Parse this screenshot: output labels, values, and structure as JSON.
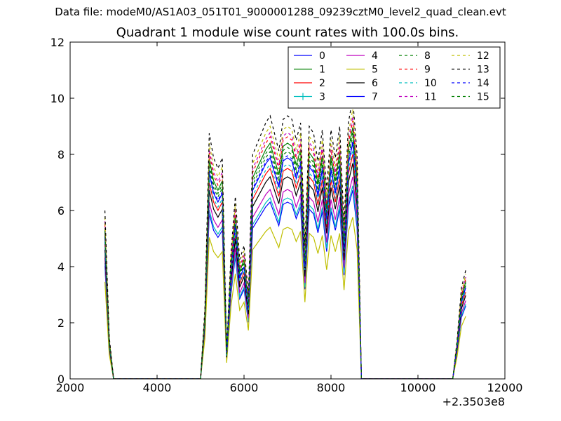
{
  "figure": {
    "suptitle": "Data file: modeM0/AS1A03_051T01_9000001288_09239cztM0_level2_quad_clean.evt"
  },
  "chart_data": {
    "type": "line",
    "title": "Quadrant 1 module wise count rates with 100.0s bins.",
    "xlabel": "",
    "ylabel": "",
    "xlim": [
      2000,
      12000
    ],
    "ylim": [
      0,
      12
    ],
    "x_ticks": [
      2000,
      4000,
      6000,
      8000,
      10000,
      12000
    ],
    "y_ticks": [
      0,
      2,
      4,
      6,
      8,
      10,
      12
    ],
    "x_offset_label": "+2.3503e8",
    "legend": {
      "placement": "top-right",
      "columns": 4
    },
    "x": [
      2800,
      2900,
      3000,
      3100,
      3200,
      3300,
      3400,
      3500,
      3600,
      3700,
      3800,
      3900,
      4000,
      4100,
      4200,
      4300,
      4400,
      4500,
      4600,
      4700,
      4800,
      4900,
      5000,
      5100,
      5200,
      5300,
      5400,
      5500,
      5600,
      5700,
      5800,
      5900,
      6000,
      6100,
      6200,
      6300,
      6400,
      6500,
      6600,
      6700,
      6800,
      6900,
      7000,
      7100,
      7200,
      7300,
      7400,
      7500,
      7600,
      7700,
      7800,
      7900,
      8000,
      8100,
      8200,
      8300,
      8400,
      8500,
      8600,
      8700,
      8800,
      8900,
      9000,
      9100,
      9200,
      9300,
      9400,
      9500,
      9600,
      9700,
      9800,
      9900,
      10000,
      10100,
      10200,
      10300,
      10400,
      10500,
      10600,
      10700,
      10800,
      10900,
      11000,
      11100
    ],
    "base_profile": [
      4.8,
      1.2,
      0,
      0,
      0,
      0,
      0,
      0,
      0,
      0,
      0,
      0,
      0,
      0,
      0,
      0,
      0,
      0,
      0,
      0,
      0,
      0,
      0,
      2.0,
      7.0,
      6.3,
      6.0,
      6.3,
      0.8,
      3.6,
      5.2,
      3.4,
      3.8,
      2.4,
      6.4,
      6.7,
      7.0,
      7.3,
      7.5,
      7.0,
      6.5,
      7.4,
      7.5,
      7.4,
      6.8,
      7.3,
      3.8,
      7.2,
      7.0,
      6.2,
      7.1,
      5.4,
      7.1,
      6.3,
      7.2,
      4.4,
      7.3,
      8.0,
      6.4,
      0,
      0,
      0,
      0,
      0,
      0,
      0,
      0,
      0,
      0,
      0,
      0,
      0,
      0,
      0,
      0,
      0,
      0,
      0,
      0,
      0,
      0,
      1.1,
      2.6,
      3.1
    ],
    "series": [
      {
        "name": "0",
        "color": "#0000ff",
        "style": "solid",
        "marker": "",
        "scale": 0.84
      },
      {
        "name": "1",
        "color": "#008000",
        "style": "solid",
        "marker": "",
        "scale": 1.12
      },
      {
        "name": "2",
        "color": "#ff0000",
        "style": "solid",
        "marker": "",
        "scale": 1.0
      },
      {
        "name": "3",
        "color": "#00bfbf",
        "style": "solid",
        "marker": "+",
        "scale": 0.86
      },
      {
        "name": "4",
        "color": "#bf00bf",
        "style": "solid",
        "marker": "",
        "scale": 0.9
      },
      {
        "name": "5",
        "color": "#bfbf00",
        "style": "solid",
        "marker": "",
        "scale": 0.72
      },
      {
        "name": "6",
        "color": "#000000",
        "style": "solid",
        "marker": "",
        "scale": 0.96
      },
      {
        "name": "7",
        "color": "#0000ff",
        "style": "solid",
        "marker": "",
        "scale": 1.05
      },
      {
        "name": "8",
        "color": "#008000",
        "style": "dashed",
        "marker": "",
        "scale": 1.08
      },
      {
        "name": "9",
        "color": "#ff0000",
        "style": "dashed",
        "marker": "",
        "scale": 1.15
      },
      {
        "name": "10",
        "color": "#00bfbf",
        "style": "dashed",
        "marker": "",
        "scale": 1.02
      },
      {
        "name": "11",
        "color": "#bf00bf",
        "style": "dashed",
        "marker": "",
        "scale": 1.17
      },
      {
        "name": "12",
        "color": "#bfbf00",
        "style": "dashed",
        "marker": "",
        "scale": 1.2
      },
      {
        "name": "13",
        "color": "#000000",
        "style": "dashed",
        "marker": "",
        "scale": 1.25
      },
      {
        "name": "14",
        "color": "#0000ff",
        "style": "dashed",
        "marker": "",
        "scale": 1.06
      },
      {
        "name": "15",
        "color": "#008000",
        "style": "dashed",
        "marker": "",
        "scale": 1.1
      }
    ]
  }
}
